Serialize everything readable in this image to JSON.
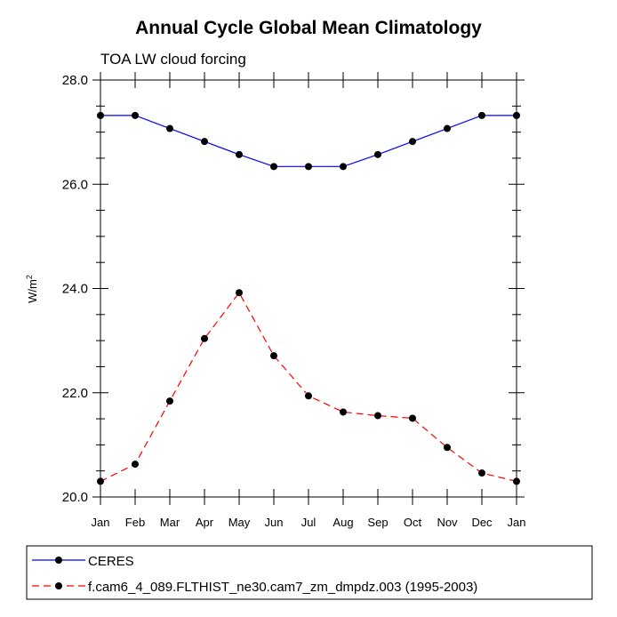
{
  "chart_data": {
    "type": "line",
    "title": "Annual Cycle Global Mean Climatology",
    "subtitle": "TOA LW cloud forcing",
    "ylabel": "W/m",
    "ylabel_superscript": "2",
    "xlabel": "",
    "categories": [
      "Jan",
      "Feb",
      "Mar",
      "Apr",
      "May",
      "Jun",
      "Jul",
      "Aug",
      "Sep",
      "Oct",
      "Nov",
      "Dec",
      "Jan"
    ],
    "ylim": [
      20.0,
      28.0
    ],
    "yticks": [
      "20.0",
      "22.0",
      "24.0",
      "26.0",
      "28.0"
    ],
    "series": [
      {
        "name": "CERES",
        "color": "#0000ff",
        "dashed": false,
        "values": [
          27.32,
          27.32,
          27.07,
          26.82,
          26.57,
          26.34,
          26.34,
          26.34,
          26.57,
          26.82,
          27.07,
          27.32,
          27.32
        ]
      },
      {
        "name": "f.cam6_4_089.FLTHIST_ne30.cam7_zm_dmpdz.003 (1995-2003)",
        "color": "#ff0000",
        "dashed": true,
        "values": [
          20.3,
          20.63,
          21.84,
          23.04,
          23.92,
          22.71,
          21.94,
          21.63,
          21.56,
          21.51,
          20.95,
          20.46,
          20.3
        ]
      }
    ]
  }
}
